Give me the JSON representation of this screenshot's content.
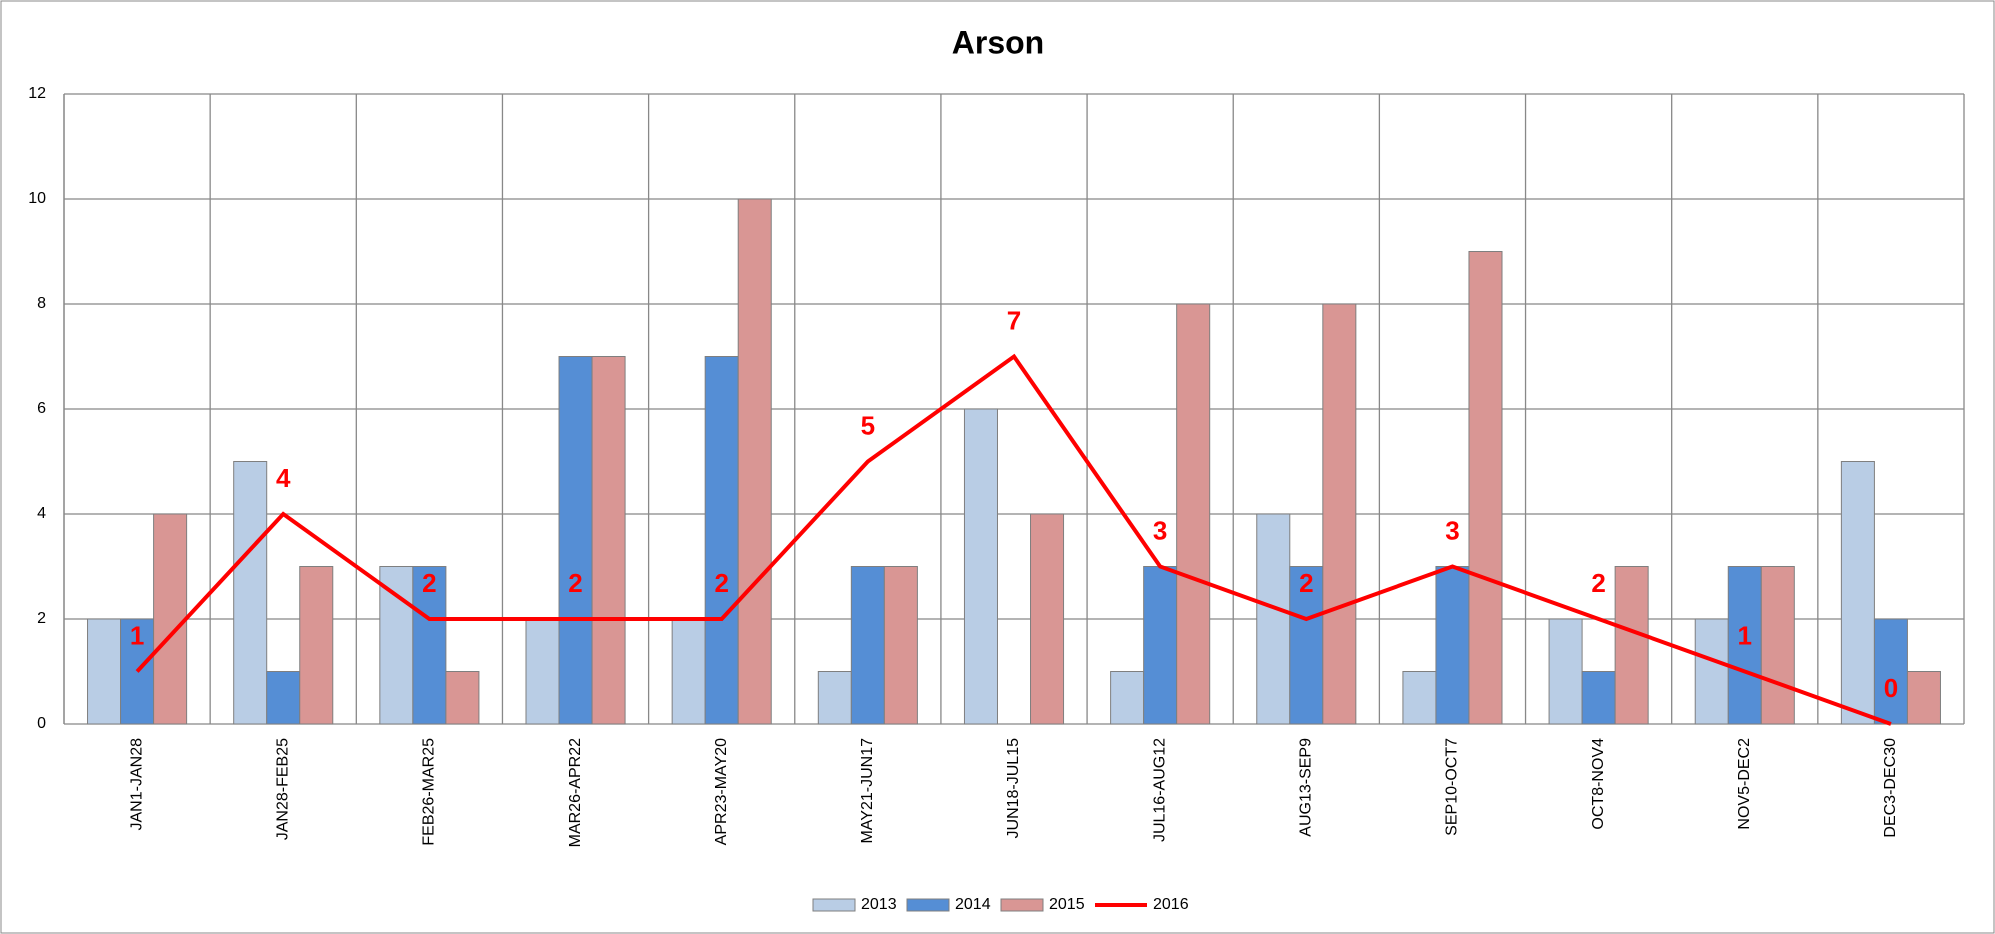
{
  "chart_data": {
    "type": "bar_line",
    "title": "Arson",
    "categories": [
      "JAN1-JAN28",
      "JAN28-FEB25",
      "FEB26-MAR25",
      "MAR26-APR22",
      "APR23-MAY20",
      "MAY21-JUN17",
      "JUN18-JUL15",
      "JUL16-AUG12",
      "AUG13-SEP9",
      "SEP10-OCT7",
      "OCT8-NOV4",
      "NOV5-DEC2",
      "DEC3-DEC30"
    ],
    "series": [
      {
        "name": "2013",
        "type": "bar",
        "color": "#b9cde5",
        "values": [
          2,
          5,
          3,
          2,
          2,
          1,
          6,
          1,
          4,
          1,
          2,
          2,
          5
        ]
      },
      {
        "name": "2014",
        "type": "bar",
        "color": "#558ed5",
        "values": [
          2,
          1,
          3,
          7,
          7,
          3,
          0,
          3,
          3,
          3,
          1,
          3,
          2
        ]
      },
      {
        "name": "2015",
        "type": "bar",
        "color": "#d99694",
        "values": [
          4,
          3,
          1,
          7,
          10,
          3,
          4,
          8,
          8,
          9,
          3,
          3,
          1
        ]
      },
      {
        "name": "2016",
        "type": "line",
        "color": "#ff0000",
        "values": [
          1,
          4,
          2,
          2,
          2,
          5,
          7,
          3,
          2,
          3,
          2,
          1,
          0
        ],
        "data_labels": true
      }
    ],
    "ylim": [
      0,
      12
    ],
    "yticks": [
      0,
      2,
      4,
      6,
      8,
      10,
      12
    ],
    "grid": true,
    "legend": "bottom"
  }
}
